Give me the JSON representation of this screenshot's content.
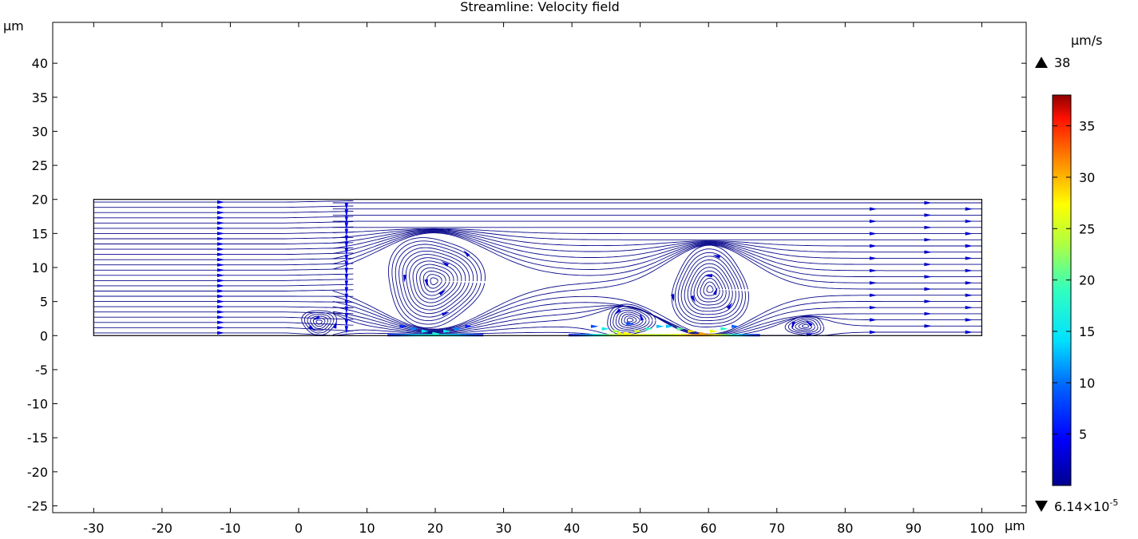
{
  "chart_data": {
    "type": "streamline",
    "title": "Streamline: Velocity field",
    "x_unit": "μm",
    "y_unit": "μm",
    "xlim": [
      -36,
      106.5
    ],
    "ylim": [
      -26,
      46
    ],
    "x_ticks": [
      -30,
      -20,
      -10,
      0,
      10,
      20,
      30,
      40,
      50,
      60,
      70,
      80,
      90,
      100
    ],
    "x_tick_labels": [
      "-30",
      "-20",
      "-10",
      "0",
      "10",
      "20",
      "30",
      "40",
      "50",
      "60",
      "70",
      "80",
      "90",
      "100"
    ],
    "y_ticks": [
      40,
      35,
      30,
      25,
      20,
      15,
      10,
      5,
      0,
      -5,
      -10,
      -15,
      -20,
      -25
    ],
    "y_tick_labels": [
      "40",
      "35",
      "30",
      "25",
      "20",
      "15",
      "10",
      "5",
      "0",
      "-5",
      "-10",
      "-15",
      "-20",
      "-25"
    ],
    "domain": {
      "x": [
        -30,
        100
      ],
      "y": [
        0,
        20
      ]
    },
    "inlet_seed_x": -11.5,
    "vortices": [
      {
        "x": 3,
        "y": 2,
        "rx": 2.5,
        "ry": 1.8,
        "turns": 6
      },
      {
        "x": 19.8,
        "y": 8,
        "rx": 7,
        "ry": 6.5,
        "turns": 13
      },
      {
        "x": 48.5,
        "y": 2.3,
        "rx": 3.5,
        "ry": 2.2,
        "turns": 8
      },
      {
        "x": 60.2,
        "y": 6.8,
        "rx": 5.5,
        "ry": 6,
        "turns": 12
      },
      {
        "x": 74.2,
        "y": 1.4,
        "rx": 2.8,
        "ry": 1.4,
        "turns": 6
      }
    ],
    "hot_spots": [
      {
        "x": 20,
        "y": 0.3,
        "speed": 15
      },
      {
        "x": 59,
        "y": 0.3,
        "speed": 28
      },
      {
        "x": 48,
        "y": 0.3,
        "speed": 24
      }
    ],
    "colorbar": {
      "unit": "μm/s",
      "max_label": "38",
      "min_label_base": "6.14×10",
      "min_label_exp": "-5",
      "min": 6.14e-05,
      "max": 38,
      "ticks": [
        35,
        30,
        25,
        20,
        15,
        10,
        5
      ],
      "tick_labels": [
        "35",
        "30",
        "25",
        "20",
        "15",
        "10",
        "5"
      ],
      "colormap": "rainbow"
    }
  }
}
